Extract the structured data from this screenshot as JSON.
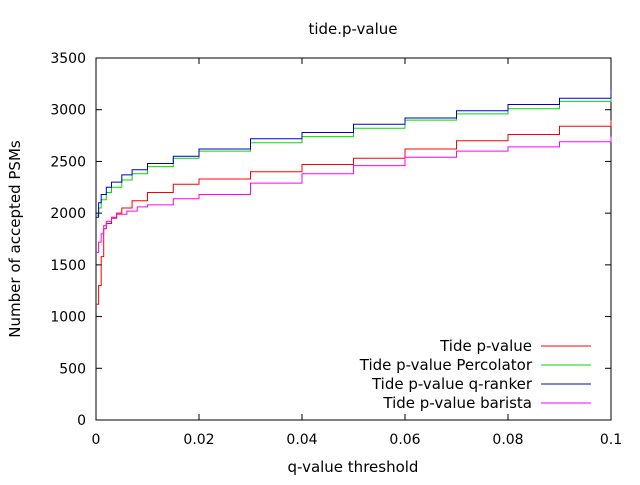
{
  "chart_data": {
    "type": "line",
    "title": "tide.p-value",
    "xlabel": "q-value threshold",
    "ylabel": "Number of accepted PSMs",
    "xlim": [
      0,
      0.1
    ],
    "ylim": [
      0,
      3500
    ],
    "x_ticks": [
      "0",
      "0.02",
      "0.04",
      "0.06",
      "0.08",
      "0.1"
    ],
    "x_tick_values": [
      0,
      0.02,
      0.04,
      0.06,
      0.08,
      0.1
    ],
    "y_ticks": [
      "0",
      "500",
      "1000",
      "1500",
      "2000",
      "2500",
      "3000",
      "3500"
    ],
    "y_tick_values": [
      0,
      500,
      1000,
      1500,
      2000,
      2500,
      3000,
      3500
    ],
    "grid": false,
    "legend_position": "bottom-right",
    "series": [
      {
        "name": "Tide p-value",
        "color": "#ff0000",
        "x": [
          0,
          0.0005,
          0.001,
          0.0015,
          0.002,
          0.003,
          0.004,
          0.005,
          0.007,
          0.01,
          0.015,
          0.02,
          0.03,
          0.04,
          0.05,
          0.06,
          0.07,
          0.08,
          0.09,
          0.1
        ],
        "y": [
          1120,
          1300,
          1580,
          1850,
          1900,
          1950,
          2000,
          2050,
          2120,
          2200,
          2280,
          2330,
          2400,
          2470,
          2530,
          2620,
          2700,
          2760,
          2840,
          2900
        ]
      },
      {
        "name": "Tide p-value Percolator",
        "color": "#00dd00",
        "x": [
          0,
          0.0005,
          0.001,
          0.002,
          0.003,
          0.005,
          0.007,
          0.01,
          0.015,
          0.02,
          0.03,
          0.04,
          0.05,
          0.06,
          0.07,
          0.08,
          0.09,
          0.1
        ],
        "y": [
          1980,
          2050,
          2130,
          2200,
          2250,
          2320,
          2380,
          2450,
          2530,
          2600,
          2680,
          2740,
          2820,
          2900,
          2960,
          3010,
          3080,
          3170
        ]
      },
      {
        "name": "Tide p-value q-ranker",
        "color": "#0000cc",
        "x": [
          0,
          0.0005,
          0.001,
          0.002,
          0.003,
          0.005,
          0.007,
          0.01,
          0.015,
          0.02,
          0.03,
          0.04,
          0.05,
          0.06,
          0.07,
          0.08,
          0.09,
          0.1
        ],
        "y": [
          1960,
          2100,
          2180,
          2250,
          2300,
          2370,
          2420,
          2480,
          2550,
          2620,
          2720,
          2780,
          2860,
          2920,
          2990,
          3050,
          3110,
          3200
        ]
      },
      {
        "name": "Tide p-value barista",
        "color": "#ff00ff",
        "x": [
          0,
          0.0005,
          0.001,
          0.0015,
          0.002,
          0.003,
          0.004,
          0.006,
          0.008,
          0.01,
          0.015,
          0.02,
          0.03,
          0.04,
          0.05,
          0.06,
          0.07,
          0.08,
          0.09,
          0.1
        ],
        "y": [
          1620,
          1720,
          1800,
          1880,
          1920,
          1960,
          1990,
          2020,
          2060,
          2080,
          2140,
          2180,
          2290,
          2380,
          2460,
          2540,
          2600,
          2640,
          2690,
          2740
        ]
      }
    ]
  }
}
